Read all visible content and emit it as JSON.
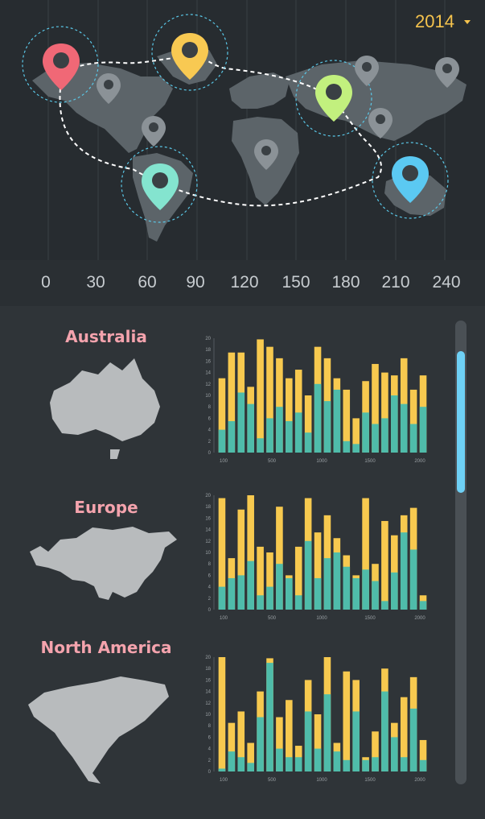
{
  "header": {
    "year": "2014"
  },
  "colors": {
    "bar_top": "#f7c94f",
    "bar_bottom": "#4fbcaa",
    "accent_pink": "#f4a3ad",
    "scroll_thumb": "#6ed0f5"
  },
  "map": {
    "pins": [
      {
        "name": "pin-north-america-red",
        "color": "#f06876",
        "highlight": true
      },
      {
        "name": "pin-greenland-yellow",
        "color": "#f8c952",
        "highlight": true
      },
      {
        "name": "pin-asia-green",
        "color": "#c2f07e",
        "highlight": true
      },
      {
        "name": "pin-south-america-teal",
        "color": "#84e4cf",
        "highlight": true
      },
      {
        "name": "pin-australia-blue",
        "color": "#5bc9f2",
        "highlight": true
      }
    ]
  },
  "axis_ticks": [
    "0",
    "30",
    "60",
    "90",
    "120",
    "150",
    "180",
    "210",
    "240"
  ],
  "regions": [
    {
      "title": "Australia"
    },
    {
      "title": "Europe"
    },
    {
      "title": "North America"
    }
  ],
  "chart_data": [
    {
      "type": "bar",
      "title": "",
      "ylim": [
        0,
        20
      ],
      "yticks": [
        "0",
        "2",
        "4",
        "6",
        "8",
        "10",
        "12",
        "14",
        "16",
        "18",
        "20"
      ],
      "xticks": [
        "100",
        "500",
        "1000",
        "1500",
        "2000"
      ],
      "series": [
        {
          "values": [
            4,
            5.5,
            10.5,
            8.5,
            2.5,
            6,
            8,
            5.5,
            7,
            3.5,
            12,
            9,
            11,
            2,
            1.5,
            7,
            5,
            6,
            10,
            8.5,
            5,
            8
          ]
        },
        {
          "values": [
            13,
            17.5,
            17.5,
            11.5,
            19.8,
            18.5,
            16.5,
            13,
            14.5,
            10,
            18.5,
            16.5,
            13,
            11,
            6,
            12.5,
            15.5,
            14,
            13.5,
            16.5,
            11,
            13.5
          ]
        }
      ]
    },
    {
      "type": "bar",
      "title": "",
      "ylim": [
        0,
        20
      ],
      "yticks": [
        "0",
        "2",
        "4",
        "6",
        "8",
        "10",
        "12",
        "14",
        "16",
        "18",
        "20"
      ],
      "xticks": [
        "100",
        "500",
        "1000",
        "1500",
        "2000"
      ],
      "series": [
        {
          "values": [
            4,
            5.5,
            6,
            8.5,
            2.5,
            4,
            8,
            5.5,
            2.5,
            12,
            5.5,
            9,
            10,
            7.5,
            5.5,
            7,
            5,
            1.5,
            6.5,
            13.5,
            10.5,
            1.5
          ]
        },
        {
          "values": [
            19.5,
            9,
            17.5,
            20,
            11,
            10,
            18,
            6,
            11,
            19.5,
            13.5,
            16.5,
            12.5,
            9.5,
            6,
            19.5,
            8,
            15.5,
            13,
            16.5,
            17.8,
            2.5
          ]
        }
      ]
    },
    {
      "type": "bar",
      "title": "",
      "ylim": [
        0,
        20
      ],
      "yticks": [
        "0",
        "2",
        "4",
        "6",
        "8",
        "10",
        "12",
        "14",
        "16",
        "18",
        "20"
      ],
      "xticks": [
        "100",
        "500",
        "1000",
        "1500",
        "2000"
      ],
      "series": [
        {
          "values": [
            0.5,
            3.5,
            2.5,
            1.5,
            9.5,
            19,
            4,
            2.5,
            2.5,
            10.5,
            4,
            13.5,
            3.5,
            2,
            10.5,
            2,
            2.5,
            14,
            6,
            2.5,
            11,
            2
          ]
        },
        {
          "values": [
            20,
            8.5,
            10.5,
            5,
            14,
            19.8,
            9.5,
            12.5,
            4.5,
            16,
            10,
            20,
            5,
            17.5,
            16,
            2.5,
            7,
            18,
            8.5,
            13,
            16.5,
            5.5
          ]
        }
      ]
    }
  ]
}
